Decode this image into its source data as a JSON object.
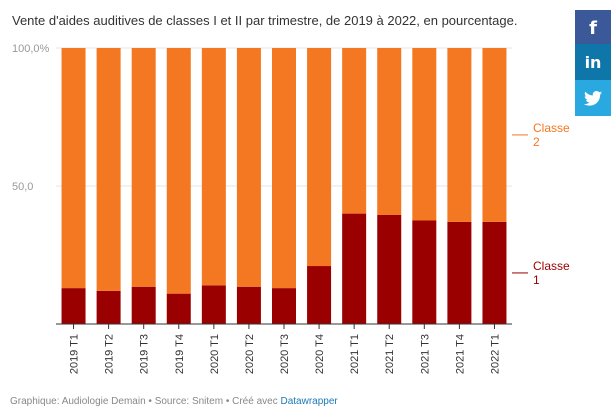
{
  "chart_data": {
    "type": "bar",
    "stacked": true,
    "title": "Vente d'aides auditives de classes I et II par trimestre, de 2019 à 2022, en pourcentage.",
    "categories": [
      "2019 T1",
      "2019 T2",
      "2019 T3",
      "2019 T4",
      "2020 T1",
      "2020 T2",
      "2020 T3",
      "2020 T4",
      "2021 T1",
      "2021 T2",
      "2021 T3",
      "2021 T4",
      "2022 T1"
    ],
    "series": [
      {
        "name": "Classe 1",
        "color": "#9b0000",
        "values": [
          13,
          12,
          13.5,
          11,
          14,
          13.5,
          13,
          21,
          40,
          39.5,
          37.5,
          37,
          37
        ]
      },
      {
        "name": "Classe 2",
        "color": "#f47721",
        "values": [
          87,
          88,
          86.5,
          89,
          86,
          86.5,
          87,
          79,
          60,
          60.5,
          62.5,
          63,
          63
        ]
      }
    ],
    "yticks": [
      "100,0%",
      "50,0"
    ],
    "ytick_values": [
      100,
      50
    ],
    "ylim": [
      0,
      100
    ],
    "legend": [
      {
        "line1": "Classe",
        "line2": "2",
        "color": "#f47721"
      },
      {
        "line1": "Classe",
        "line2": "1",
        "color": "#9b0000"
      }
    ]
  },
  "footer": {
    "text": "Graphique: Audiologie Demain • Source: Snitem • Créé avec ",
    "link": "Datawrapper"
  },
  "social": {
    "facebook": "f",
    "linkedin": "in"
  }
}
